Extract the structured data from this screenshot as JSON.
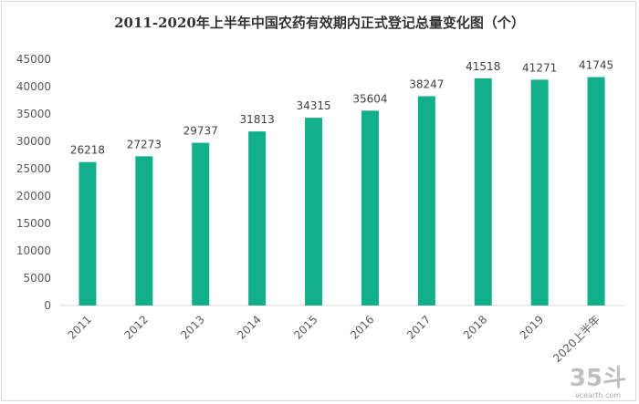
{
  "chart_data": {
    "type": "bar",
    "title": "2011-2020年上半年中国农药有效期内正式登记总量变化图（个）",
    "categories": [
      "2011",
      "2012",
      "2013",
      "2014",
      "2015",
      "2016",
      "2017",
      "2018",
      "2019",
      "2020上半年"
    ],
    "values": [
      26218,
      27273,
      29737,
      31813,
      34315,
      35604,
      38247,
      41518,
      41271,
      41745
    ],
    "yticks": [
      "0",
      "5000",
      "10000",
      "15000",
      "20000",
      "25000",
      "30000",
      "35000",
      "40000",
      "45000"
    ],
    "ylim": [
      0,
      45000
    ],
    "ytick_step": 5000,
    "grid": false,
    "bar_color": "#12b08a"
  },
  "watermark": {
    "mark": "35斗",
    "text": "vcearth.com"
  }
}
